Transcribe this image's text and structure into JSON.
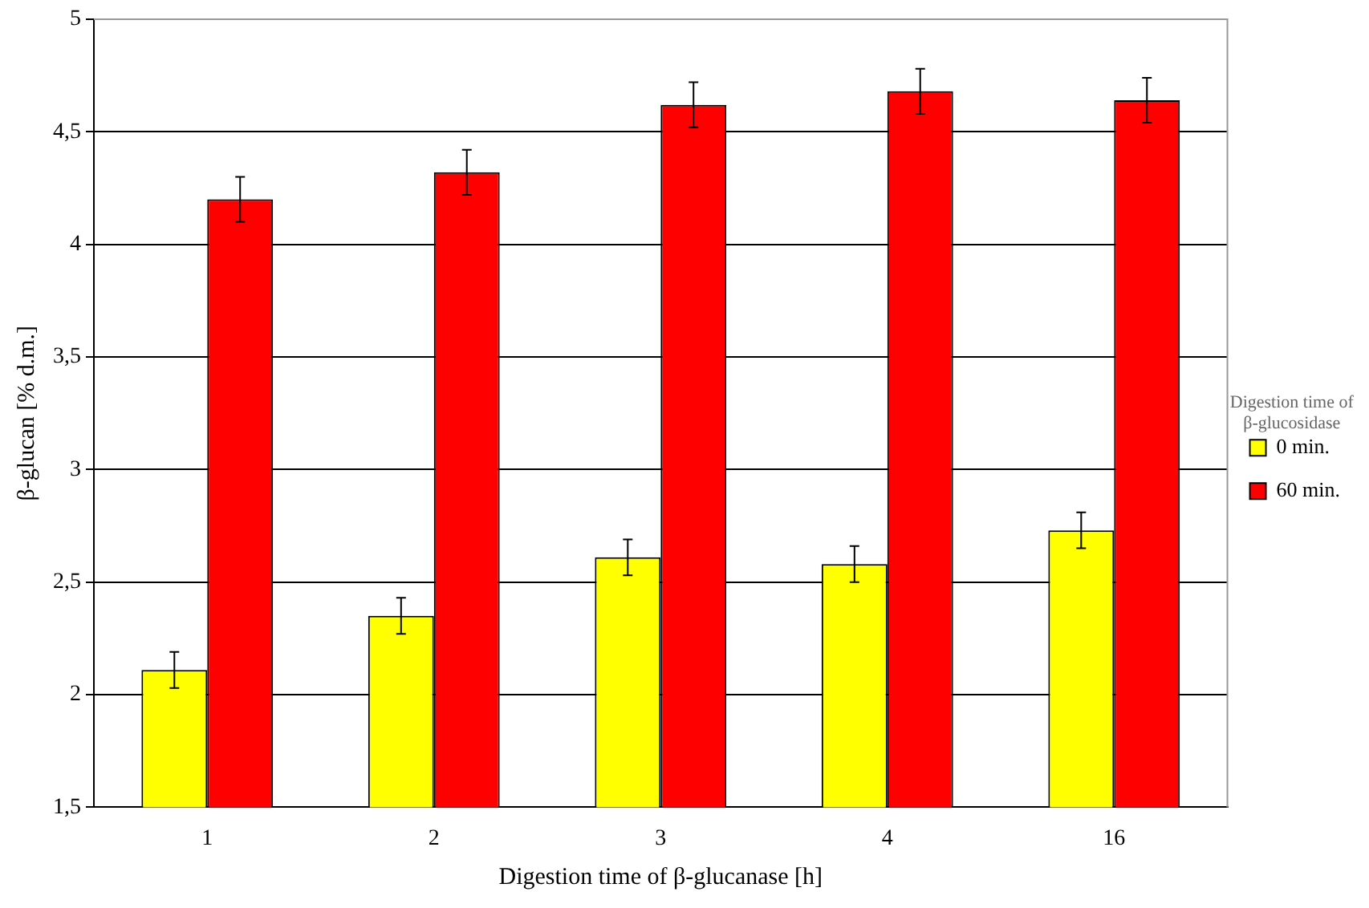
{
  "chart_data": {
    "type": "bar",
    "xlabel": "Digestion time of β-glucanase [h]",
    "ylabel": "β-glucan [% d.m.]",
    "legend_title": "Digestion time of β-glucosidase",
    "categories": [
      "1",
      "2",
      "3",
      "4",
      "16"
    ],
    "series": [
      {
        "name": "0 min.",
        "color": "#ffff00",
        "values": [
          2.11,
          2.35,
          2.61,
          2.58,
          2.73
        ],
        "errors": [
          0.08,
          0.08,
          0.08,
          0.08,
          0.08
        ]
      },
      {
        "name": "60 min.",
        "color": "#ff0000",
        "values": [
          4.2,
          4.32,
          4.62,
          4.68,
          4.64
        ],
        "errors": [
          0.1,
          0.1,
          0.1,
          0.1,
          0.1
        ]
      }
    ],
    "ylim": [
      1.5,
      5
    ],
    "yticks": [
      {
        "value": 1.5,
        "label": "1,5"
      },
      2,
      {
        "value": 2.5,
        "label": "2,5"
      },
      3,
      {
        "value": 3.5,
        "label": "3,5"
      },
      4,
      {
        "value": 4.5,
        "label": "4,5"
      },
      5
    ],
    "grid": "y",
    "legend": "right"
  }
}
